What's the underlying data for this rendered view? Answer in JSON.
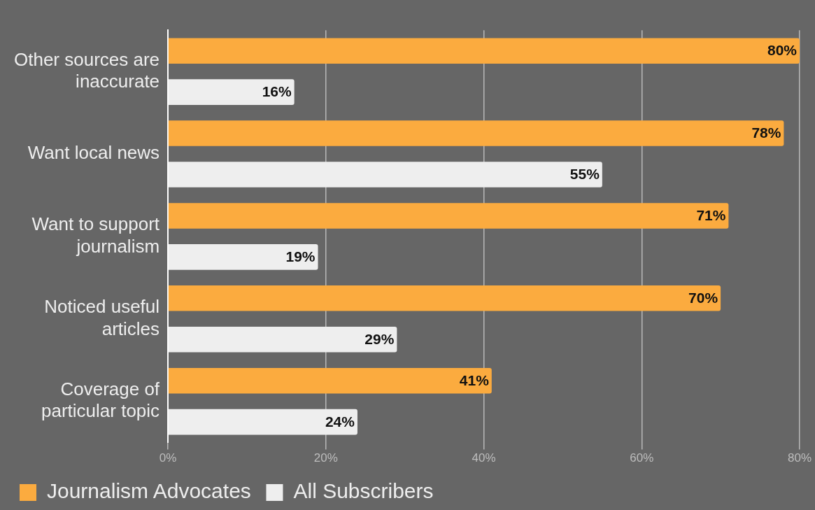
{
  "chart_data": {
    "type": "bar",
    "orientation": "horizontal",
    "categories": [
      "Other sources are inaccurate",
      "Want local news",
      "Want to support journalism",
      "Noticed useful articles",
      "Coverage of particular topic"
    ],
    "series": [
      {
        "name": "Journalism Advocates",
        "color": "#fbab3f",
        "values": [
          80,
          78,
          71,
          70,
          41
        ],
        "value_labels": [
          "80%",
          "78%",
          "71%",
          "70%",
          "41%"
        ]
      },
      {
        "name": "All Subscribers",
        "color": "#eeeeee",
        "values": [
          16,
          55,
          19,
          29,
          24
        ],
        "value_labels": [
          "16%",
          "55%",
          "19%",
          "29%",
          "24%"
        ]
      }
    ],
    "xlim": [
      0,
      80
    ],
    "xticks": [
      {
        "value": 0,
        "label": "0%"
      },
      {
        "value": 20,
        "label": "20%"
      },
      {
        "value": 40,
        "label": "40%"
      },
      {
        "value": 60,
        "label": "60%"
      },
      {
        "value": 80,
        "label": "80%"
      }
    ],
    "grid": "x",
    "legend": "bottom"
  }
}
